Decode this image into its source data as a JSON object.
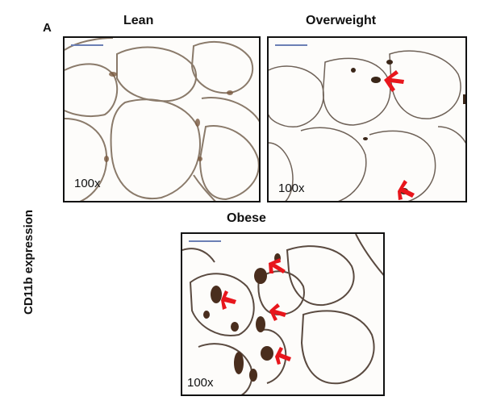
{
  "figure": {
    "panel_letter": "A",
    "y_axis_label": "CD11b expression",
    "panels": [
      {
        "title": "Lean",
        "magnification": "100x"
      },
      {
        "title": "Overweight",
        "magnification": "100x"
      },
      {
        "title": "Obese",
        "magnification": "100x"
      }
    ]
  },
  "colors": {
    "arrow": "#e8161c",
    "stain": "#5a3a26",
    "membrane": "#8a7a6a"
  }
}
